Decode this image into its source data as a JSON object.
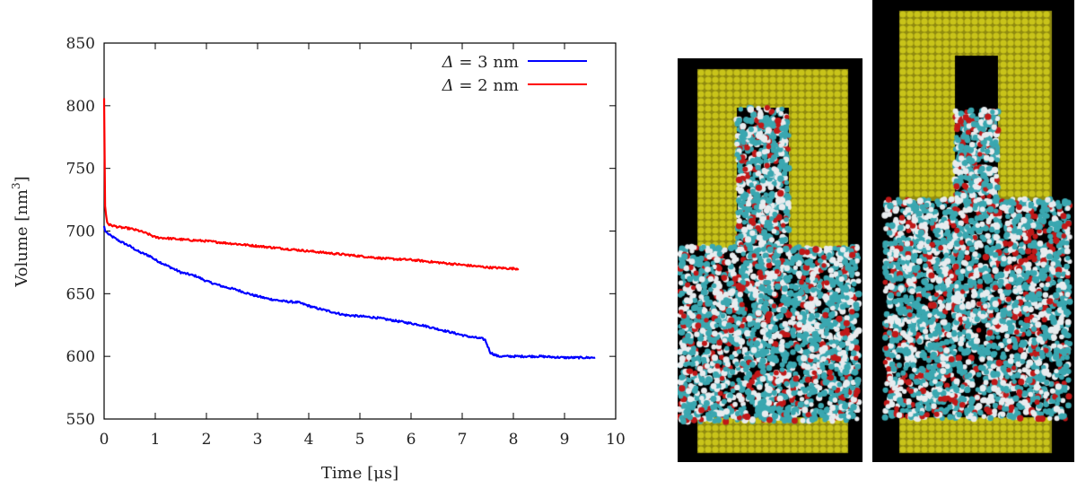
{
  "chart_data": {
    "type": "line",
    "xlabel": "Time [μs]",
    "ylabel_main": "Volume [nm",
    "ylabel_sup": "3",
    "ylabel_close": "]",
    "xlim": [
      0,
      10
    ],
    "ylim": [
      550,
      850
    ],
    "x_ticks": [
      0,
      1,
      2,
      3,
      4,
      5,
      6,
      7,
      8,
      9,
      10
    ],
    "y_ticks": [
      550,
      600,
      650,
      700,
      750,
      800,
      850
    ],
    "grid": false,
    "legend_position": "top-right",
    "series": [
      {
        "name": "Δ = 3 nm",
        "name_greek": "Δ",
        "name_rest": " = 3 nm",
        "color": "#0000ff",
        "x": [
          0.0,
          0.02,
          0.1,
          0.3,
          0.5,
          0.7,
          0.9,
          1.0,
          1.2,
          1.5,
          1.8,
          2.0,
          2.3,
          2.6,
          2.9,
          3.2,
          3.5,
          3.8,
          4.1,
          4.4,
          4.7,
          5.0,
          5.3,
          5.6,
          5.9,
          6.2,
          6.5,
          6.8,
          7.1,
          7.4,
          7.45,
          7.55,
          7.7,
          8.0,
          8.5,
          9.0,
          9.3,
          9.6
        ],
        "y": [
          704,
          700,
          697,
          692,
          688,
          683,
          680,
          677,
          673,
          667,
          664,
          660,
          656,
          653,
          649,
          646,
          644,
          643,
          639,
          636,
          633,
          632,
          631,
          629,
          627,
          625,
          622,
          619,
          616,
          614,
          613,
          603,
          600,
          600,
          600,
          599,
          599,
          599
        ]
      },
      {
        "name": "Δ = 2 nm",
        "name_greek": "Δ",
        "name_rest": " = 2 nm",
        "color": "#ff0000",
        "x": [
          0.0,
          0.02,
          0.04,
          0.06,
          0.1,
          0.3,
          0.5,
          0.7,
          0.9,
          1.0,
          1.3,
          1.6,
          2.0,
          2.5,
          3.0,
          3.5,
          4.0,
          4.5,
          5.0,
          5.5,
          6.0,
          6.5,
          7.0,
          7.5,
          8.0,
          8.1
        ],
        "y": [
          806,
          720,
          712,
          707,
          705,
          703,
          702,
          700,
          697,
          695,
          694,
          693,
          692,
          690,
          688,
          686,
          684,
          682,
          680,
          678,
          677,
          675,
          673,
          671,
          670,
          670
        ]
      }
    ]
  },
  "figure_colors": {
    "gold": "#c9c41a",
    "water_cyan": "#3aa7b0",
    "water_white": "#e8ecef",
    "oxygen_red": "#c01818",
    "background_black": "#000000"
  }
}
